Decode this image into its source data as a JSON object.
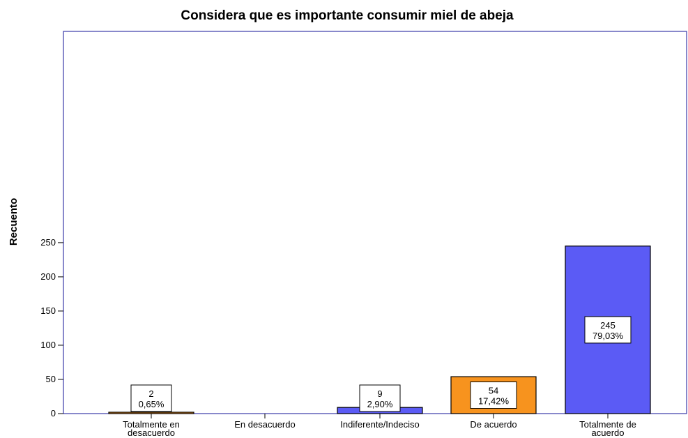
{
  "chart_data": {
    "type": "bar",
    "title": "Considera que es importante consumir miel de abeja",
    "xlabel": "",
    "ylabel": "Recuento",
    "ylim": [
      0,
      275
    ],
    "yticks": [
      0,
      50,
      100,
      150,
      200,
      250
    ],
    "categories": [
      [
        "Totalmente en",
        "desacuerdo"
      ],
      [
        "En desacuerdo"
      ],
      [
        "Indiferente/Indeciso"
      ],
      [
        "De acuerdo"
      ],
      [
        "Totalmente de",
        "acuerdo"
      ]
    ],
    "values": [
      2,
      0,
      9,
      54,
      245
    ],
    "percent_labels": [
      "0,65%",
      "",
      "2,90%",
      "17,42%",
      "79,03%"
    ],
    "bar_colors": [
      "#f7931e",
      "#f7931e",
      "#5b5bf5",
      "#f7931e",
      "#5b5bf5"
    ],
    "frame_color": "#3a3aa8",
    "grid": false,
    "legend": "none"
  }
}
